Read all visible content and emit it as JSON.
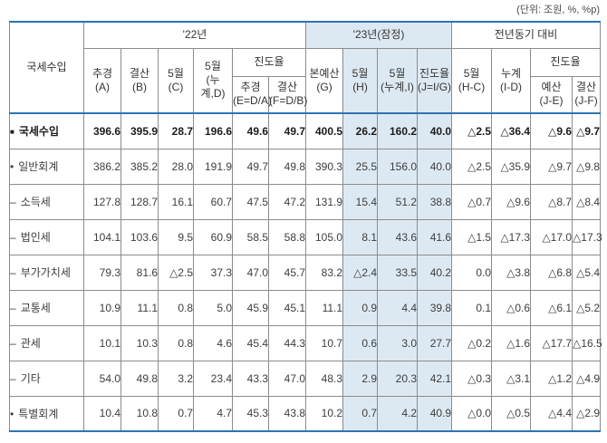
{
  "unit_note": "(단위: 조원, %, %p)",
  "colors": {
    "accent": "#2e74b5",
    "highlight": "#dde9f2",
    "grid": "#8c8c8c",
    "text": "#3d3d3d"
  },
  "header": {
    "row_label": "국세수입",
    "groups": {
      "y22": "'22년",
      "y23": "'23년(잠정)",
      "yoy": "전년동기 대비"
    },
    "progress_label": "진도율",
    "cols": {
      "a": "추경\n(A)",
      "b": "결산\n(B)",
      "c": "5월\n(C)",
      "d": "5월\n(누계,D)",
      "e": "추경\n(E=D/A)",
      "f": "결산\n(F=D/B)",
      "g": "본예산\n(G)",
      "h": "5월\n(H)",
      "i": "5월\n(누계,I)",
      "j": "진도율\n(J=I/G)",
      "hc": "5월\n(H-C)",
      "id": "누계\n(I-D)",
      "je": "예산\n(J-E)",
      "jf": "결산\n(J-F)"
    }
  },
  "highlight_columns": [
    7,
    8,
    9
  ],
  "rows": [
    {
      "bullet": "■",
      "label": "국세수입",
      "indent": 0,
      "bold": true,
      "values": [
        "396.6",
        "395.9",
        "28.7",
        "196.6",
        "49.6",
        "49.7",
        "400.5",
        "26.2",
        "160.2",
        "40.0",
        "△2.5",
        "△36.4",
        "△9.6",
        "△9.7"
      ]
    },
    {
      "bullet": "•",
      "label": "일반회계",
      "indent": 0,
      "bold": false,
      "values": [
        "386.2",
        "385.2",
        "28.0",
        "191.9",
        "49.7",
        "49.8",
        "390.3",
        "25.5",
        "156.0",
        "40.0",
        "△2.5",
        "△35.9",
        "△9.7",
        "△9.8"
      ]
    },
    {
      "bullet": "–",
      "label": "소득세",
      "indent": 1,
      "bold": false,
      "values": [
        "127.8",
        "128.7",
        "16.1",
        "60.7",
        "47.5",
        "47.2",
        "131.9",
        "15.4",
        "51.2",
        "38.8",
        "△0.7",
        "△9.6",
        "△8.7",
        "△8.4"
      ]
    },
    {
      "bullet": "–",
      "label": "법인세",
      "indent": 1,
      "bold": false,
      "values": [
        "104.1",
        "103.6",
        "9.5",
        "60.9",
        "58.5",
        "58.8",
        "105.0",
        "8.1",
        "43.6",
        "41.6",
        "△1.5",
        "△17.3",
        "△17.0",
        "△17.3"
      ]
    },
    {
      "bullet": "–",
      "label": "부가가치세",
      "indent": 1,
      "bold": false,
      "values": [
        "79.3",
        "81.6",
        "△2.5",
        "37.3",
        "47.0",
        "45.7",
        "83.2",
        "△2.4",
        "33.5",
        "40.2",
        "0.0",
        "△3.8",
        "△6.8",
        "△5.4"
      ]
    },
    {
      "bullet": "–",
      "label": "교통세",
      "indent": 1,
      "bold": false,
      "values": [
        "10.9",
        "11.1",
        "0.8",
        "5.0",
        "45.9",
        "45.1",
        "11.1",
        "0.9",
        "4.4",
        "39.8",
        "0.1",
        "△0.6",
        "△6.1",
        "△5.2"
      ]
    },
    {
      "bullet": "–",
      "label": "관세",
      "indent": 1,
      "bold": false,
      "values": [
        "10.1",
        "10.3",
        "0.8",
        "4.6",
        "45.4",
        "44.3",
        "10.7",
        "0.6",
        "3.0",
        "27.7",
        "△0.2",
        "△1.6",
        "△17.7",
        "△16.5"
      ]
    },
    {
      "bullet": "–",
      "label": "기타",
      "indent": 1,
      "bold": false,
      "values": [
        "54.0",
        "49.8",
        "3.2",
        "23.4",
        "43.3",
        "47.0",
        "48.3",
        "2.9",
        "20.3",
        "42.1",
        "△0.3",
        "△3.1",
        "△1.2",
        "△4.9"
      ]
    },
    {
      "bullet": "•",
      "label": "특별회계",
      "indent": 0,
      "bold": false,
      "values": [
        "10.4",
        "10.8",
        "0.7",
        "4.7",
        "45.3",
        "43.8",
        "10.2",
        "0.7",
        "4.2",
        "40.9",
        "△0.0",
        "△0.5",
        "△4.4",
        "△2.9"
      ]
    }
  ]
}
